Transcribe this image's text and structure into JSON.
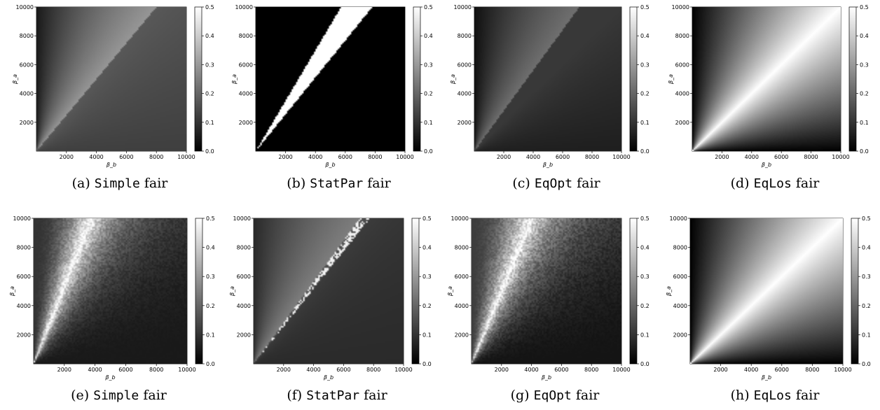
{
  "chart_data": [
    {
      "type": "heatmap",
      "id": "a",
      "pattern": "simple1",
      "caption": {
        "letter": "(a)",
        "method": "Simple",
        "suffix": "fair"
      },
      "xlabel": "β_b",
      "ylabel": "β_a",
      "xlim": [
        0,
        10000
      ],
      "ylim": [
        0,
        10000
      ],
      "xticks": [
        2000,
        4000,
        6000,
        8000,
        10000
      ],
      "yticks": [
        2000,
        4000,
        6000,
        8000,
        10000
      ],
      "colorbar": {
        "min": 0.0,
        "max": 0.5,
        "ticks": [
          "0.0",
          "0.1",
          "0.2",
          "0.3",
          "0.4",
          "0.5"
        ]
      }
    },
    {
      "type": "heatmap",
      "id": "b",
      "pattern": "statpar1",
      "caption": {
        "letter": "(b)",
        "method": "StatPar",
        "suffix": "fair"
      },
      "xlabel": "β_b",
      "ylabel": "β_a",
      "xlim": [
        0,
        10000
      ],
      "ylim": [
        0,
        10000
      ],
      "xticks": [
        2000,
        4000,
        6000,
        8000,
        10000
      ],
      "yticks": [
        2000,
        4000,
        6000,
        8000,
        10000
      ],
      "colorbar": {
        "min": 0.0,
        "max": 0.5,
        "ticks": [
          "0.0",
          "0.1",
          "0.2",
          "0.3",
          "0.4",
          "0.5"
        ]
      }
    },
    {
      "type": "heatmap",
      "id": "c",
      "pattern": "eqopt1",
      "caption": {
        "letter": "(c)",
        "method": "EqOpt",
        "suffix": "fair"
      },
      "xlabel": "β_b",
      "ylabel": "β_a",
      "xlim": [
        0,
        10000
      ],
      "ylim": [
        0,
        10000
      ],
      "xticks": [
        2000,
        4000,
        6000,
        8000,
        10000
      ],
      "yticks": [
        2000,
        4000,
        6000,
        8000,
        10000
      ],
      "colorbar": {
        "min": 0.0,
        "max": 0.5,
        "ticks": [
          "0.0",
          "0.1",
          "0.2",
          "0.3",
          "0.4",
          "0.5"
        ]
      }
    },
    {
      "type": "heatmap",
      "id": "d",
      "pattern": "eqlos",
      "caption": {
        "letter": "(d)",
        "method": "EqLos",
        "suffix": "fair"
      },
      "xlabel": "β_b",
      "ylabel": "β_a",
      "xlim": [
        0,
        10000
      ],
      "ylim": [
        0,
        10000
      ],
      "xticks": [
        2000,
        4000,
        6000,
        8000,
        10000
      ],
      "yticks": [
        2000,
        4000,
        6000,
        8000,
        10000
      ],
      "colorbar": {
        "min": 0.0,
        "max": 0.5,
        "ticks": [
          "0.0",
          "0.1",
          "0.2",
          "0.3",
          "0.4",
          "0.5"
        ]
      }
    },
    {
      "type": "heatmap",
      "id": "e",
      "pattern": "simple2",
      "caption": {
        "letter": "(e)",
        "method": "Simple",
        "suffix": "fair"
      },
      "xlabel": "β_b",
      "ylabel": "β_a",
      "xlim": [
        0,
        10000
      ],
      "ylim": [
        0,
        10000
      ],
      "xticks": [
        2000,
        4000,
        6000,
        8000,
        10000
      ],
      "yticks": [
        2000,
        4000,
        6000,
        8000,
        10000
      ],
      "colorbar": {
        "min": 0.0,
        "max": 0.5,
        "ticks": [
          "0.0",
          "0.1",
          "0.2",
          "0.3",
          "0.4",
          "0.5"
        ]
      }
    },
    {
      "type": "heatmap",
      "id": "f",
      "pattern": "statpar2",
      "caption": {
        "letter": "(f)",
        "method": "StatPar",
        "suffix": "fair"
      },
      "xlabel": "β_b",
      "ylabel": "β_a",
      "xlim": [
        0,
        10000
      ],
      "ylim": [
        0,
        10000
      ],
      "xticks": [
        2000,
        4000,
        6000,
        8000,
        10000
      ],
      "yticks": [
        2000,
        4000,
        6000,
        8000,
        10000
      ],
      "colorbar": {
        "min": 0.0,
        "max": 0.5,
        "ticks": [
          "0.0",
          "0.1",
          "0.2",
          "0.3",
          "0.4",
          "0.5"
        ]
      }
    },
    {
      "type": "heatmap",
      "id": "g",
      "pattern": "eqopt2",
      "caption": {
        "letter": "(g)",
        "method": "EqOpt",
        "suffix": "fair"
      },
      "xlabel": "β_b",
      "ylabel": "β_a",
      "xlim": [
        0,
        10000
      ],
      "ylim": [
        0,
        10000
      ],
      "xticks": [
        2000,
        4000,
        6000,
        8000,
        10000
      ],
      "yticks": [
        2000,
        4000,
        6000,
        8000,
        10000
      ],
      "colorbar": {
        "min": 0.0,
        "max": 0.5,
        "ticks": [
          "0.0",
          "0.1",
          "0.2",
          "0.3",
          "0.4",
          "0.5"
        ]
      }
    },
    {
      "type": "heatmap",
      "id": "h",
      "pattern": "eqlos",
      "caption": {
        "letter": "(h)",
        "method": "EqLos",
        "suffix": "fair"
      },
      "xlabel": "β_b",
      "ylabel": "β_a",
      "xlim": [
        0,
        10000
      ],
      "ylim": [
        0,
        10000
      ],
      "xticks": [
        2000,
        4000,
        6000,
        8000,
        10000
      ],
      "yticks": [
        2000,
        4000,
        6000,
        8000,
        10000
      ],
      "colorbar": {
        "min": 0.0,
        "max": 0.5,
        "ticks": [
          "0.0",
          "0.1",
          "0.2",
          "0.3",
          "0.4",
          "0.5"
        ]
      }
    }
  ]
}
